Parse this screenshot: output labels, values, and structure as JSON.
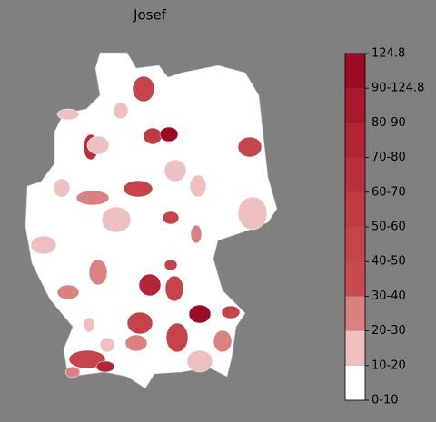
{
  "title": "Josef",
  "legend": {
    "labels": [
      "0-10",
      "10-20",
      "20-30",
      "30-40",
      "40-50",
      "50-60",
      "60-70",
      "70-80",
      "80-90",
      "90-124.8",
      "124.8"
    ],
    "colors": [
      "#ffffff",
      "#eec0c0",
      "#da8282",
      "#ca4a50",
      "#c5434a",
      "#bf3a44",
      "#b92f3d",
      "#b32536",
      "#a9192e",
      "#9c0a23"
    ]
  }
}
